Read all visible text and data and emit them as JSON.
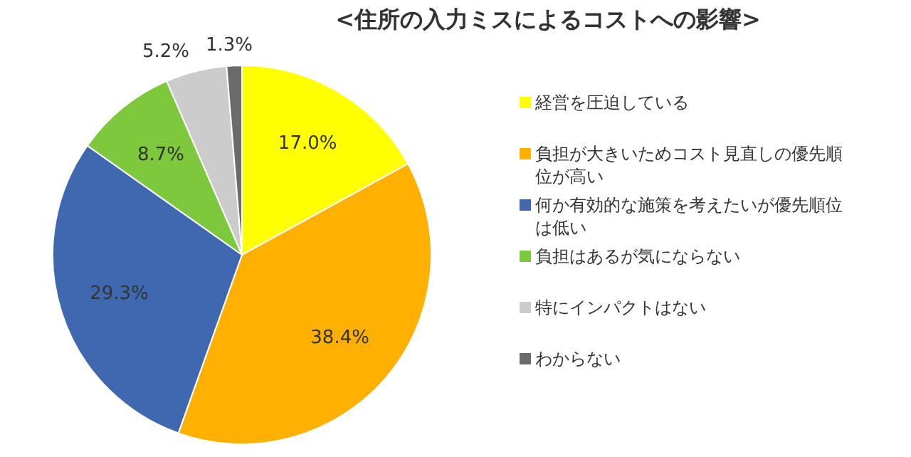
{
  "chart_data": {
    "type": "pie",
    "title": "<住所の入力ミスによるコストへの影響>",
    "categories": [
      "経営を圧迫している",
      "負担が大きいためコスト見直しの優先順位が高い",
      "何か有効的な施策を考えたいが優先順位は低い",
      "負担はあるが気にならない",
      "特にインパクトはない",
      "わからない"
    ],
    "values": [
      17.0,
      38.4,
      29.3,
      8.7,
      5.2,
      1.3
    ],
    "colors": [
      "#ffff00",
      "#ffb000",
      "#3f68b0",
      "#7dc83c",
      "#cccccc",
      "#6b6b6b"
    ],
    "value_labels": [
      "17.0%",
      "38.4%",
      "29.3%",
      "8.7%",
      "5.2%",
      "1.3%"
    ],
    "legend": "right"
  }
}
